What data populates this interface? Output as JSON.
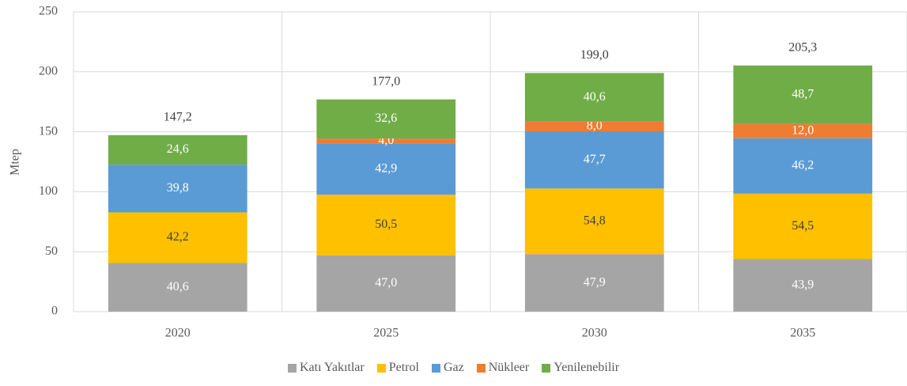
{
  "chart_data": {
    "type": "stacked_bar",
    "y_label": "Mtep",
    "categories": [
      "2020",
      "2025",
      "2030",
      "2035"
    ],
    "series": [
      {
        "name": "Katı Yakıtlar",
        "color": "#a5a5a5",
        "label_color": "#ffffff",
        "values": [
          40.6,
          47.0,
          47.9,
          43.9
        ],
        "value_labels": [
          "40,6",
          "47,0",
          "47,9",
          "43,9"
        ]
      },
      {
        "name": "Petrol",
        "color": "#ffc000",
        "label_color": "#404040",
        "values": [
          42.2,
          50.5,
          54.8,
          54.5
        ],
        "value_labels": [
          "42,2",
          "50,5",
          "54,8",
          "54,5"
        ]
      },
      {
        "name": "Gaz",
        "color": "#5b9bd5",
        "label_color": "#ffffff",
        "values": [
          39.8,
          42.9,
          47.7,
          46.2
        ],
        "value_labels": [
          "39,8",
          "42,9",
          "47,7",
          "46,2"
        ]
      },
      {
        "name": "Nükleer",
        "color": "#ed7d31",
        "label_color": "#ffffff",
        "values": [
          null,
          4.0,
          8.0,
          12.0
        ],
        "value_labels": [
          null,
          "4,0",
          "8,0",
          "12,0"
        ]
      },
      {
        "name": "Yenilenebilir",
        "color": "#70ad47",
        "label_color": "#ffffff",
        "values": [
          24.6,
          32.6,
          40.6,
          48.7
        ],
        "value_labels": [
          "24,6",
          "32,6",
          "40,6",
          "48,7"
        ]
      }
    ],
    "totals": {
      "values": [
        147.2,
        177.0,
        199.0,
        205.3
      ],
      "value_labels": [
        "147,2",
        "177,0",
        "199,0",
        "205,3"
      ]
    },
    "ylim": [
      0,
      250
    ],
    "yticks": [
      0,
      50,
      100,
      150,
      200,
      250
    ],
    "grid": true
  }
}
